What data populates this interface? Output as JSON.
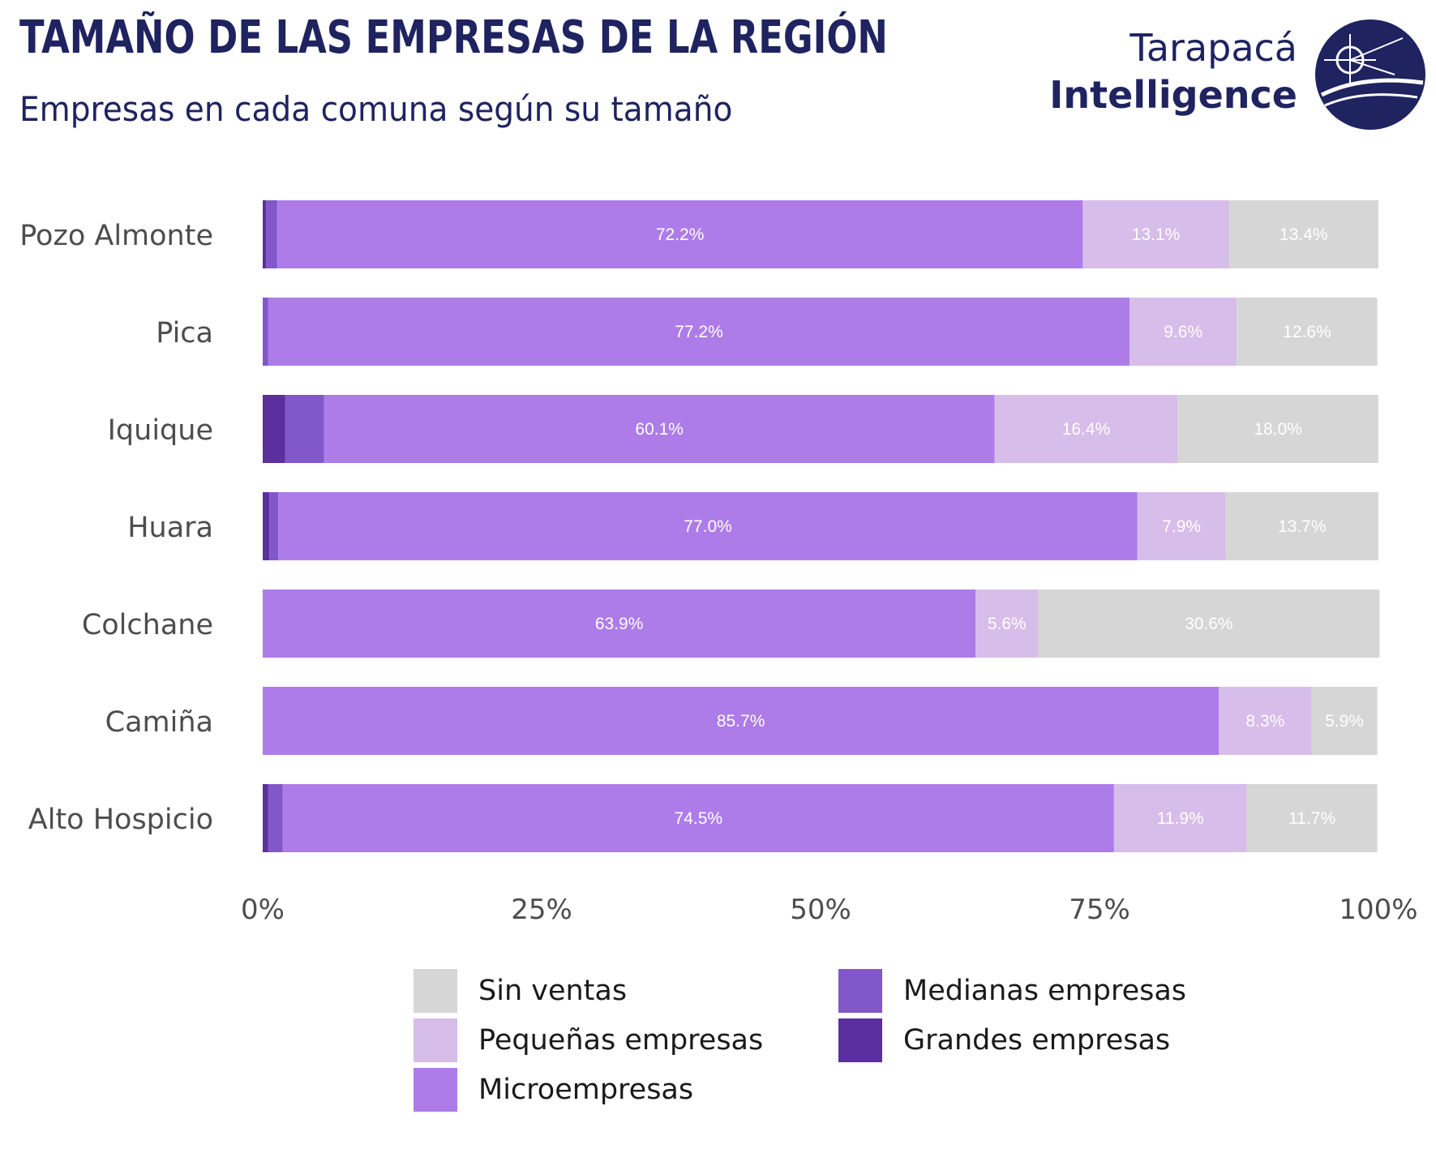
{
  "header": {
    "title": "TAMAÑO DE LAS EMPRESAS DE LA REGIÓN",
    "subtitle": "Empresas en cada comuna según su tamaño"
  },
  "logo": {
    "line1": "Tarapacá",
    "line2": "Intelligence"
  },
  "colors": {
    "Sin ventas": "#d6d6d6",
    "Pequeñas empresas": "#d7bde9",
    "Microempresas": "#ad7ce9",
    "Medianas empresas": "#8257c9",
    "Grandes empresas": "#5c2f9e"
  },
  "chart_data": {
    "type": "bar",
    "orientation": "horizontal",
    "stacked": true,
    "title": "TAMAÑO DE LAS EMPRESAS DE LA REGIÓN",
    "subtitle": "Empresas en cada comuna según su tamaño",
    "categories": [
      "Pozo Almonte",
      "Pica",
      "Iquique",
      "Huara",
      "Colchane",
      "Camiña",
      "Alto Hospicio"
    ],
    "xlim": [
      0,
      100
    ],
    "x_ticks": [
      "0%",
      "25%",
      "50%",
      "75%",
      "100%"
    ],
    "grid": false,
    "legend_position": "bottom",
    "series": [
      {
        "name": "Grandes empresas",
        "values": [
          0.3,
          0.0,
          2.0,
          0.6,
          0.0,
          0.0,
          0.5
        ],
        "labels": [
          "",
          "",
          "",
          "",
          "",
          "",
          ""
        ]
      },
      {
        "name": "Medianas empresas",
        "values": [
          1.0,
          0.5,
          3.5,
          0.8,
          0.0,
          0.0,
          1.3
        ],
        "labels": [
          "",
          "",
          "",
          "",
          "",
          "",
          ""
        ]
      },
      {
        "name": "Microempresas",
        "values": [
          72.2,
          77.2,
          60.1,
          77.0,
          63.9,
          85.7,
          74.5
        ],
        "labels": [
          "72.2%",
          "77.2%",
          "60.1%",
          "77.0%",
          "63.9%",
          "85.7%",
          "74.5%"
        ]
      },
      {
        "name": "Pequeñas empresas",
        "values": [
          13.1,
          9.6,
          16.4,
          7.9,
          5.6,
          8.3,
          11.9
        ],
        "labels": [
          "13.1%",
          "9.6%",
          "16.4%",
          "7.9%",
          "5.6%",
          "8.3%",
          "11.9%"
        ]
      },
      {
        "name": "Sin ventas",
        "values": [
          13.4,
          12.6,
          18.0,
          13.7,
          30.6,
          5.9,
          11.7
        ],
        "labels": [
          "13.4%",
          "12.6%",
          "18.0%",
          "13.7%",
          "30.6%",
          "5.9%",
          "11.7%"
        ]
      }
    ]
  },
  "legend": [
    {
      "label": "Sin ventas",
      "color_key": "Sin ventas"
    },
    {
      "label": "Pequeñas empresas",
      "color_key": "Pequeñas empresas"
    },
    {
      "label": "Microempresas",
      "color_key": "Microempresas"
    },
    {
      "label": "Medianas empresas",
      "color_key": "Medianas empresas"
    },
    {
      "label": "Grandes empresas",
      "color_key": "Grandes empresas"
    }
  ]
}
